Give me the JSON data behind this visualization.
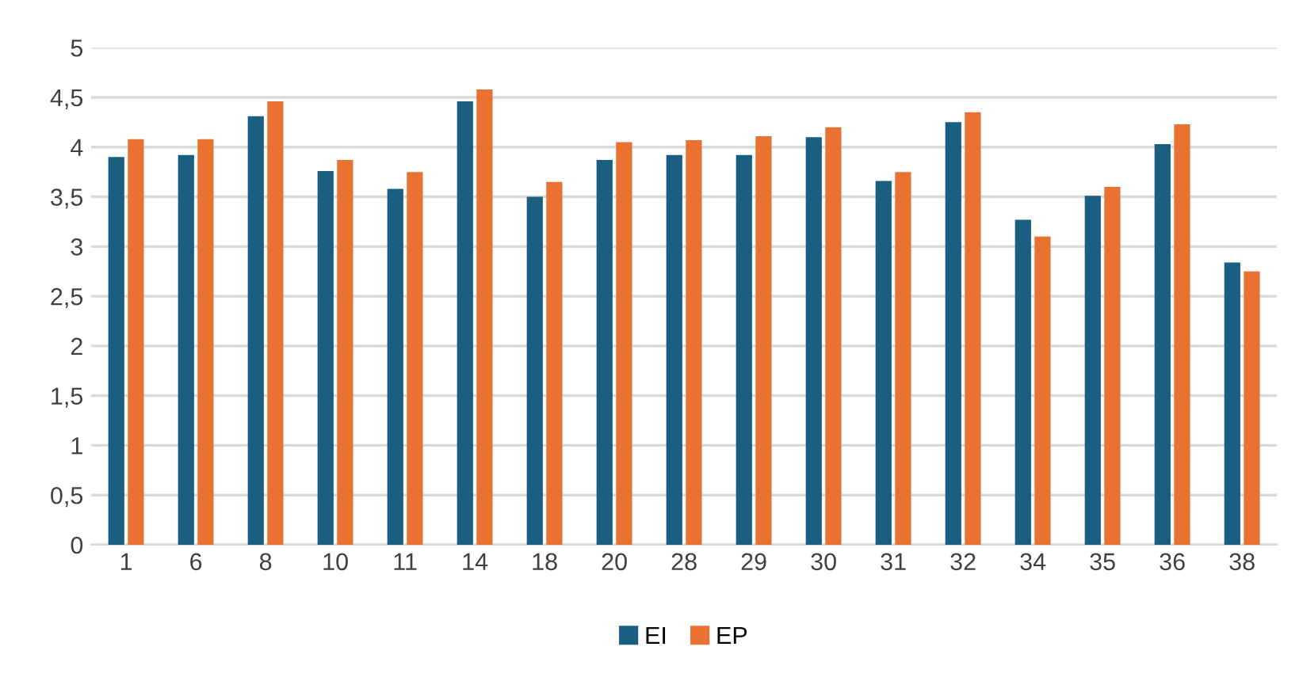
{
  "chart_data": {
    "type": "bar",
    "categories": [
      "1",
      "6",
      "8",
      "10",
      "11",
      "14",
      "18",
      "20",
      "28",
      "29",
      "30",
      "31",
      "32",
      "34",
      "35",
      "36",
      "38"
    ],
    "series": [
      {
        "name": "EI",
        "color": "#1a5f80",
        "values": [
          3.9,
          3.92,
          4.31,
          3.76,
          3.58,
          4.46,
          3.5,
          3.87,
          3.92,
          3.92,
          4.1,
          3.66,
          4.25,
          3.27,
          3.51,
          4.03,
          2.84
        ]
      },
      {
        "name": "EP",
        "color": "#e97132",
        "values": [
          4.08,
          4.08,
          4.46,
          3.87,
          3.75,
          4.58,
          3.65,
          4.05,
          4.07,
          4.11,
          4.2,
          3.75,
          4.35,
          3.1,
          3.6,
          4.23,
          2.75
        ]
      }
    ],
    "ylim": [
      0,
      5
    ],
    "yticks": [
      0,
      {
        "value": 0.5,
        "label": "0,5"
      },
      1,
      {
        "value": 1.5,
        "label": "1,5"
      },
      2,
      {
        "value": 2.5,
        "label": "2,5"
      },
      3,
      {
        "value": 3.5,
        "label": "3,5"
      },
      4,
      {
        "value": 4.5,
        "label": "4,5"
      },
      5
    ],
    "grid": "y",
    "legend": "bottom"
  }
}
